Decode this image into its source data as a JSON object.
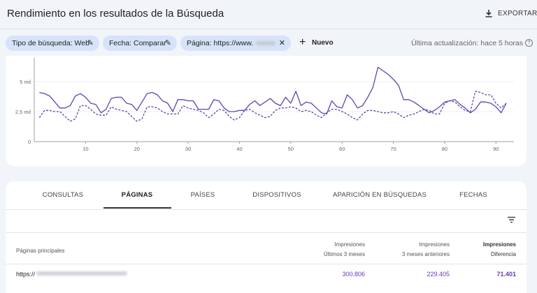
{
  "header": {
    "title": "Rendimiento en los resultados de la Búsqueda",
    "export": "EXPORTAR"
  },
  "filters": [
    "Tipo de búsqueda: Web",
    "Fecha: Comparar",
    "Página: https://www."
  ],
  "new_button": "Nuevo",
  "last_update": "Última actualización: hace 5 horas",
  "chart_data": {
    "type": "line",
    "x": [
      1,
      2,
      3,
      4,
      5,
      6,
      7,
      8,
      9,
      10,
      11,
      12,
      13,
      14,
      15,
      16,
      17,
      18,
      19,
      20,
      21,
      22,
      23,
      24,
      25,
      26,
      27,
      28,
      29,
      30,
      31,
      32,
      33,
      34,
      35,
      36,
      37,
      38,
      39,
      40,
      41,
      42,
      43,
      44,
      45,
      46,
      47,
      48,
      49,
      50,
      51,
      52,
      53,
      54,
      55,
      56,
      57,
      58,
      59,
      60,
      61,
      62,
      63,
      64,
      65,
      66,
      67,
      68,
      69,
      70,
      71,
      72,
      73,
      74,
      75,
      76,
      77,
      78,
      79,
      80,
      81,
      82,
      83,
      84,
      85,
      86,
      87,
      88,
      89,
      90,
      91,
      92
    ],
    "series": [
      {
        "color": "#5b47b0",
        "dash": false,
        "values": [
          4100,
          4000,
          3800,
          3300,
          2800,
          2800,
          3000,
          3800,
          4000,
          3700,
          3200,
          3100,
          2400,
          2700,
          3600,
          3700,
          3700,
          3200,
          3100,
          2600,
          3300,
          4000,
          4100,
          3900,
          3400,
          3200,
          2500,
          3500,
          3500,
          3400,
          3400,
          2700,
          2700,
          2700,
          3500,
          3400,
          2800,
          2500,
          2500,
          2600,
          2600,
          3100,
          3400,
          3000,
          3300,
          3600,
          3200,
          3000,
          3700,
          3200,
          4200,
          3000,
          3300,
          3200,
          2800,
          2400,
          2300,
          3400,
          2900,
          2800,
          3900,
          3500,
          2800,
          3000,
          3700,
          4500,
          6200,
          5900,
          5600,
          5200,
          4700,
          3500,
          3500,
          3300,
          3000,
          2700,
          2400,
          2600,
          2900,
          3300,
          3400,
          3500,
          3100,
          2800,
          2400,
          2700,
          3300,
          3300,
          3200,
          2900,
          2400,
          3200
        ]
      },
      {
        "color": "#5b47b0",
        "dash": true,
        "values": [
          2000,
          2600,
          2600,
          2500,
          2500,
          2100,
          1700,
          1900,
          3000,
          3000,
          2700,
          2300,
          2200,
          2200,
          2900,
          2700,
          2600,
          2500,
          2100,
          1700,
          1900,
          2900,
          2900,
          2800,
          2500,
          2300,
          2300,
          2300,
          3000,
          2800,
          2700,
          2600,
          2400,
          2000,
          2300,
          2700,
          2600,
          2100,
          1800,
          2000,
          2600,
          2700,
          2400,
          2200,
          2000,
          2100,
          2600,
          2800,
          2800,
          2900,
          2800,
          2500,
          2600,
          2500,
          2200,
          2000,
          2400,
          2700,
          2700,
          2500,
          2300,
          2000,
          1800,
          2300,
          2600,
          2600,
          2500,
          2400,
          2400,
          2500,
          2300,
          2000,
          2200,
          2300,
          2500,
          2700,
          2600,
          2300,
          2300,
          3200,
          3400,
          3300,
          2900,
          2600,
          2500,
          4200,
          4100,
          3900,
          3900,
          3200,
          2800,
          3200
        ]
      }
    ],
    "xlim": [
      0,
      93.5
    ],
    "ylim": [
      0,
      7000
    ],
    "xticks": [
      10,
      20,
      30,
      40,
      50,
      60,
      70,
      80,
      90
    ],
    "yticks": [
      0,
      {
        "value": 2500,
        "label": "2,5 mil"
      },
      {
        "value": 5000,
        "label": "5 mil"
      }
    ],
    "grid": true
  },
  "tabs": {
    "items": [
      "CONSULTAS",
      "PÁGINAS",
      "PAÍSES",
      "DISPOSITIVOS",
      "APARICIÓN EN BÚSQUEDAS",
      "FECHAS"
    ],
    "active": 1
  },
  "table": {
    "columns": [
      [
        "Páginas principales"
      ],
      [
        "Impresiones",
        "Últimos 3 meses"
      ],
      [
        "Impresiones",
        "3 meses anteriores"
      ],
      [
        "Impresiones",
        "Diferencia"
      ]
    ],
    "rows": [
      [
        "https://",
        "300.806",
        "229.405",
        "71.401"
      ]
    ]
  }
}
